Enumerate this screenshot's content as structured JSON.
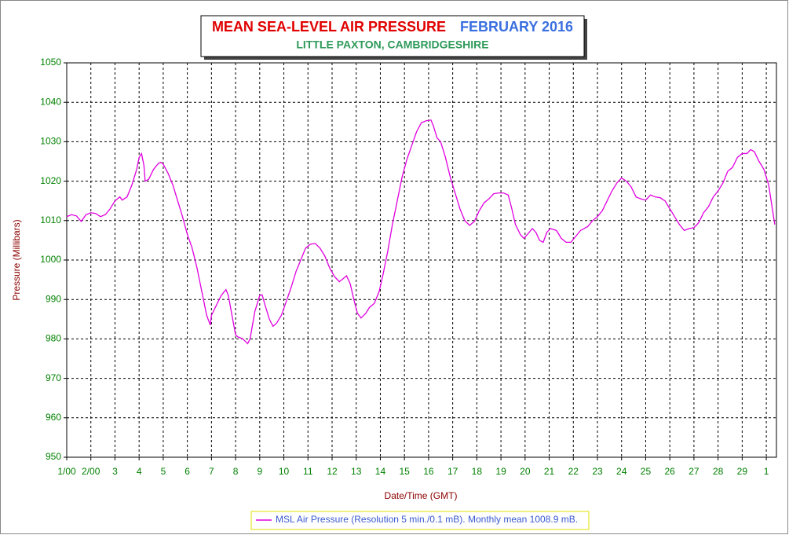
{
  "chart_data": {
    "type": "line",
    "title": "MEAN SEA-LEVEL AIR PRESSURE",
    "title_date": "FEBRUARY 2016",
    "subtitle": "LITTLE PAXTON, CAMBRIDGESHIRE",
    "y_label": "Pressure (Millibars)",
    "x_label": "Date/Time (GMT)",
    "xlim": [
      0,
      29.42
    ],
    "ylim": [
      950,
      1050
    ],
    "yticks": [
      950,
      960,
      970,
      980,
      990,
      1000,
      1010,
      1020,
      1030,
      1040,
      1050
    ],
    "xticks": [
      {
        "value": 0,
        "label": "1/00"
      },
      {
        "value": 1,
        "label": "2/00"
      },
      {
        "value": 2,
        "label": "3"
      },
      {
        "value": 3,
        "label": "4"
      },
      {
        "value": 4,
        "label": "5"
      },
      {
        "value": 5,
        "label": "6"
      },
      {
        "value": 6,
        "label": "7"
      },
      {
        "value": 7,
        "label": "8"
      },
      {
        "value": 8,
        "label": "9"
      },
      {
        "value": 9,
        "label": "10"
      },
      {
        "value": 10,
        "label": "11"
      },
      {
        "value": 11,
        "label": "12"
      },
      {
        "value": 12,
        "label": "13"
      },
      {
        "value": 13,
        "label": "14"
      },
      {
        "value": 14,
        "label": "15"
      },
      {
        "value": 15,
        "label": "16"
      },
      {
        "value": 16,
        "label": "17"
      },
      {
        "value": 17,
        "label": "18"
      },
      {
        "value": 18,
        "label": "19"
      },
      {
        "value": 19,
        "label": "20"
      },
      {
        "value": 20,
        "label": "21"
      },
      {
        "value": 21,
        "label": "22"
      },
      {
        "value": 22,
        "label": "23"
      },
      {
        "value": 23,
        "label": "24"
      },
      {
        "value": 24,
        "label": "25"
      },
      {
        "value": 25,
        "label": "26"
      },
      {
        "value": 26,
        "label": "27"
      },
      {
        "value": 27,
        "label": "28"
      },
      {
        "value": 28,
        "label": "29"
      },
      {
        "value": 29,
        "label": "1"
      }
    ],
    "grid": true,
    "x": [
      0,
      0.2,
      0.4,
      0.6,
      0.8,
      1.0,
      1.2,
      1.4,
      1.6,
      1.8,
      2.0,
      2.2,
      2.3,
      2.5,
      2.7,
      2.9,
      3.0,
      3.1,
      3.2,
      3.25,
      3.4,
      3.6,
      3.8,
      3.9,
      4.0,
      4.2,
      4.4,
      4.6,
      4.8,
      5.0,
      5.2,
      5.4,
      5.6,
      5.8,
      5.95,
      6.0,
      6.2,
      6.4,
      6.6,
      6.7,
      6.85,
      7.0,
      7.1,
      7.3,
      7.5,
      7.6,
      7.8,
      8.0,
      8.1,
      8.2,
      8.4,
      8.55,
      8.7,
      8.9,
      9.1,
      9.3,
      9.5,
      9.7,
      9.9,
      10.1,
      10.3,
      10.5,
      10.7,
      10.9,
      11.1,
      11.3,
      11.5,
      11.6,
      11.75,
      11.9,
      12.05,
      12.2,
      12.4,
      12.55,
      12.75,
      12.95,
      13.1,
      13.3,
      13.5,
      13.7,
      13.9,
      14.1,
      14.3,
      14.5,
      14.7,
      14.9,
      15.1,
      15.2,
      15.35,
      15.5,
      15.7,
      15.9,
      16.1,
      16.3,
      16.5,
      16.7,
      16.9,
      17.1,
      17.3,
      17.5,
      17.7,
      17.9,
      18.1,
      18.3,
      18.45,
      18.6,
      18.8,
      18.95,
      19.1,
      19.3,
      19.45,
      19.6,
      19.75,
      19.9,
      20.05,
      20.3,
      20.5,
      20.7,
      20.9,
      21.1,
      21.3,
      21.6,
      21.8,
      22.0,
      22.2,
      22.4,
      22.6,
      22.8,
      23.0,
      23.2,
      23.4,
      23.6,
      23.8,
      24.0,
      24.2,
      24.4,
      24.6,
      24.8,
      25.0,
      25.2,
      25.4,
      25.6,
      25.8,
      26.0,
      26.2,
      26.4,
      26.6,
      26.8,
      27.0,
      27.2,
      27.4,
      27.6,
      27.8,
      28.0,
      28.2,
      28.35,
      28.5,
      28.7,
      28.9,
      29.1,
      29.25,
      29.35
    ],
    "series": [
      {
        "name": "MSL Air Pressure (Resolution 5 min./0.1 mB). Monthly mean 1008.9 mB.",
        "color": "#e000e0",
        "values": [
          1011,
          1011.5,
          1011.2,
          1009.8,
          1011.5,
          1012,
          1011.8,
          1011,
          1011.5,
          1013,
          1015,
          1016,
          1015.2,
          1016,
          1019,
          1023,
          1026,
          1027,
          1024,
          1020,
          1020.5,
          1023,
          1024.5,
          1024.8,
          1024.3,
          1022,
          1019,
          1015,
          1011,
          1006.5,
          1003,
          998,
          992,
          986,
          983.5,
          986,
          988.5,
          991,
          992.5,
          991,
          986,
          981,
          980.5,
          980,
          978.8,
          980,
          987,
          991,
          991.2,
          989,
          985,
          983.2,
          984,
          986,
          989.5,
          993,
          997,
          1000,
          1003,
          1004,
          1004.2,
          1003,
          1001,
          998,
          995.8,
          994.5,
          995.5,
          996,
          994,
          990,
          986.5,
          985.3,
          986.5,
          988,
          989,
          992,
          996,
          1002,
          1009,
          1015,
          1021,
          1025.5,
          1029,
          1032.5,
          1034.8,
          1035.3,
          1035.5,
          1034,
          1031,
          1030,
          1026,
          1021,
          1017,
          1013,
          1010,
          1008.8,
          1009.8,
          1012.5,
          1014.5,
          1015.5,
          1016.8,
          1017,
          1017,
          1016.5,
          1013,
          1009,
          1006.5,
          1005.5,
          1006.5,
          1008,
          1007,
          1005,
          1004.5,
          1007,
          1008,
          1007.5,
          1005.5,
          1004.5,
          1004.5,
          1006,
          1007.5,
          1008.5,
          1010,
          1011,
          1012.5,
          1015,
          1017.5,
          1019.5,
          1020.8,
          1020,
          1018.5,
          1016,
          1015.5,
          1015.2,
          1016.5,
          1016,
          1015.8,
          1015,
          1013,
          1011,
          1009,
          1007.5,
          1008,
          1008.2,
          1009.5,
          1012,
          1013.5,
          1016,
          1017.5,
          1019.5,
          1022.5,
          1023.5,
          1026,
          1027,
          1027,
          1028,
          1027.5,
          1025,
          1023,
          1019,
          1013,
          1009
        ]
      }
    ]
  }
}
